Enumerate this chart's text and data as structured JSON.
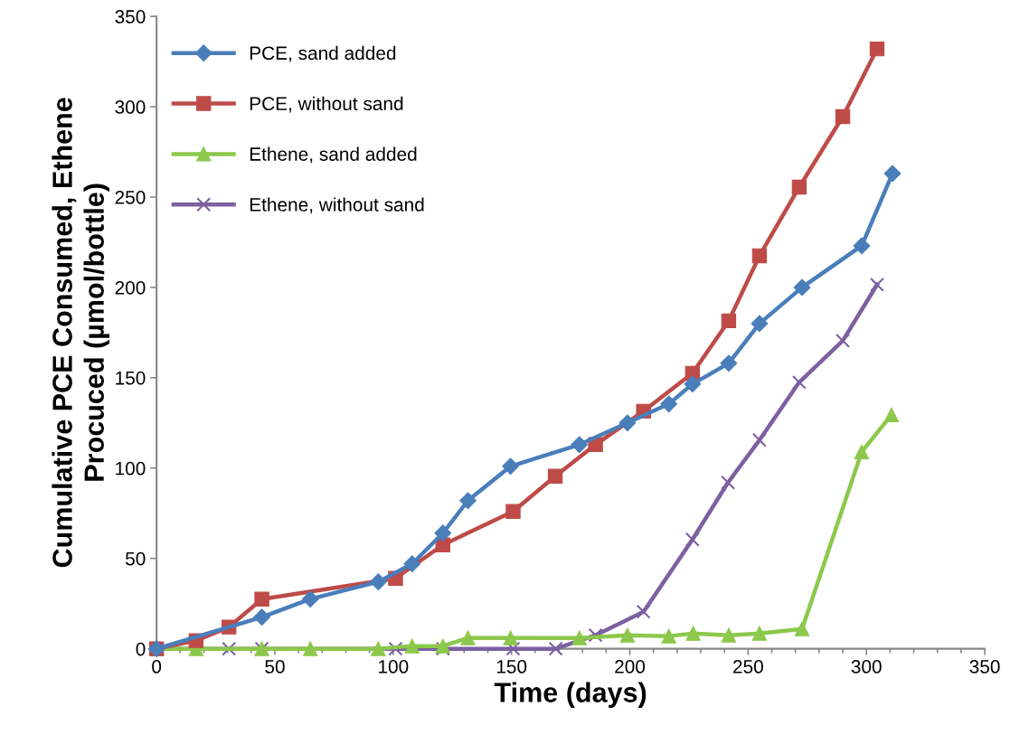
{
  "chart_data": {
    "type": "line",
    "xlabel": "Time (days)",
    "ylabel": "Cumulative PCE Consumed, Ethene\nProcuced (µmol/bottle)",
    "xlim": [
      0,
      350
    ],
    "ylim": [
      0,
      350
    ],
    "xticks": [
      0,
      {
        "value": 10,
        "label": null
      },
      {
        "value": 20,
        "label": null
      },
      {
        "value": 30,
        "label": null
      },
      {
        "value": 40,
        "label": null
      },
      50,
      {
        "value": 60,
        "label": null
      },
      {
        "value": 70,
        "label": null
      },
      {
        "value": 80,
        "label": null
      },
      {
        "value": 90,
        "label": null
      },
      100,
      {
        "value": 110,
        "label": null
      },
      {
        "value": 120,
        "label": null
      },
      {
        "value": 130,
        "label": null
      },
      {
        "value": 140,
        "label": null
      },
      150,
      {
        "value": 160,
        "label": null
      },
      {
        "value": 170,
        "label": null
      },
      {
        "value": 180,
        "label": null
      },
      {
        "value": 190,
        "label": null
      },
      200,
      {
        "value": 210,
        "label": null
      },
      {
        "value": 220,
        "label": null
      },
      {
        "value": 230,
        "label": null
      },
      {
        "value": 240,
        "label": null
      },
      250,
      {
        "value": 260,
        "label": null
      },
      {
        "value": 270,
        "label": null
      },
      {
        "value": 280,
        "label": null
      },
      {
        "value": 290,
        "label": null
      },
      300,
      {
        "value": 310,
        "label": null
      },
      {
        "value": 320,
        "label": null
      },
      {
        "value": 330,
        "label": null
      },
      {
        "value": 340,
        "label": null
      },
      350
    ],
    "yticks": [
      0,
      50,
      100,
      150,
      200,
      250,
      300,
      350
    ],
    "grid": false,
    "legend": "top left",
    "line_style": "solid",
    "series": [
      {
        "name": "PCE, sand added",
        "color": "#4a7ebb",
        "marker": "diamond",
        "x": [
          0,
          44.5,
          65,
          93.7,
          108,
          121,
          131.6,
          149.6,
          178.7,
          199,
          216.5,
          226.5,
          241.8,
          254.8,
          272.8,
          298,
          311
        ],
        "values": [
          0,
          17.5,
          27.5,
          37,
          47,
          64,
          82,
          101,
          113,
          125,
          135.5,
          146.5,
          158,
          180,
          200,
          223,
          263
        ]
      },
      {
        "name": "PCE, without sand",
        "color": "#be4b48",
        "marker": "square",
        "x": [
          0,
          16.7,
          30.6,
          44.5,
          101,
          121,
          150.7,
          168.5,
          185.5,
          205.8,
          226.5,
          241.8,
          254.8,
          271.6,
          290,
          304.5
        ],
        "values": [
          0,
          4.5,
          12,
          27.5,
          39,
          57.5,
          76,
          95.5,
          113,
          131.5,
          152.5,
          181.5,
          217.5,
          255.5,
          294.5,
          332
        ]
      },
      {
        "name": "Ethene, sand added",
        "color": "#8cc84b",
        "marker": "triangle",
        "x": [
          0,
          16.7,
          44.5,
          65,
          93.7,
          108,
          121,
          131.6,
          149.6,
          178.7,
          199,
          216.5,
          226.8,
          241.8,
          254.8,
          272.8,
          298,
          310.6
        ],
        "values": [
          0,
          0,
          0,
          0,
          0,
          1.5,
          1.5,
          6,
          6,
          6,
          7.5,
          7,
          8.5,
          7.5,
          8.5,
          11,
          109,
          129.5
        ]
      },
      {
        "name": "Ethene, without sand",
        "color": "#7d60a0",
        "marker": "cross",
        "x": [
          0,
          30.6,
          44.5,
          101,
          121,
          150.7,
          168.7,
          185.5,
          205.8,
          226.5,
          241.5,
          254.8,
          271.6,
          290,
          304.5
        ],
        "values": [
          0,
          0,
          0,
          0,
          0,
          0,
          0,
          7.5,
          20.5,
          60.5,
          92,
          115.5,
          147.5,
          170.5,
          201.5
        ]
      }
    ]
  }
}
